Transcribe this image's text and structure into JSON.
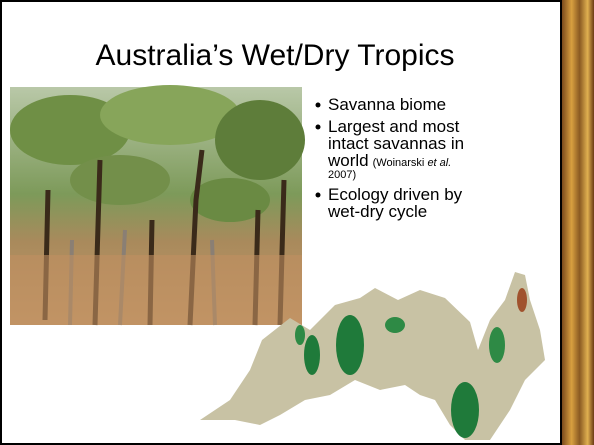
{
  "slide": {
    "title": "Australia’s Wet/Dry Tropics",
    "bullets": [
      {
        "text": "Savanna biome"
      },
      {
        "lines": [
          "Largest and most",
          "intact savannas in",
          "world"
        ],
        "citation": [
          "(Woinarski ",
          "et al.",
          "2007)"
        ]
      },
      {
        "lines": [
          "Ecology driven by",
          "wet-dry cycle"
        ]
      }
    ]
  }
}
